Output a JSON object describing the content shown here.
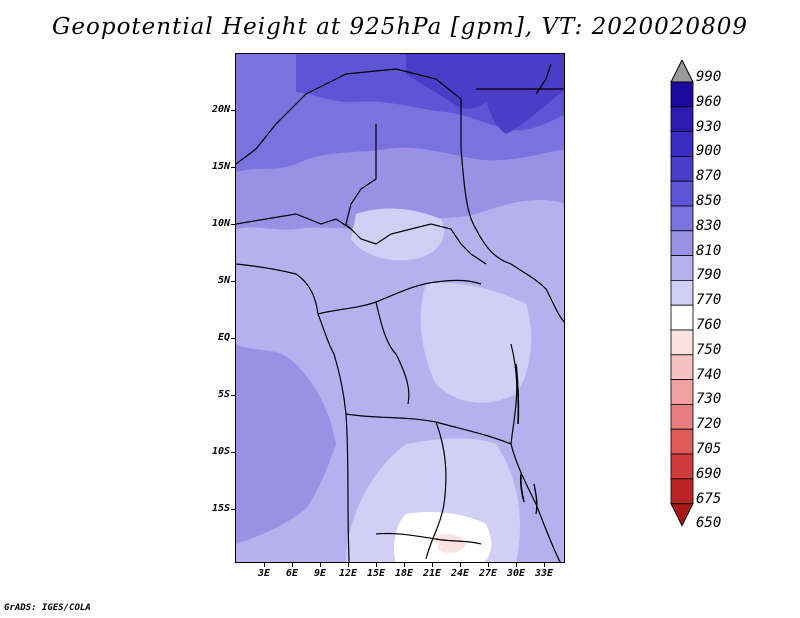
{
  "title": "Geopotential Height at 925hPa [gpm], VT: 2020020809",
  "credit": "GrADS: IGES/COLA",
  "map": {
    "variable": "geopotential height",
    "level": "925hPa",
    "units": "gpm",
    "lon_range": [
      0,
      35
    ],
    "lat_range": [
      -20,
      25
    ],
    "lat_ticks": [
      "20N",
      "15N",
      "10N",
      "5N",
      "EQ",
      "5S",
      "10S",
      "15S"
    ],
    "lon_ticks": [
      "3E",
      "6E",
      "9E",
      "12E",
      "15E",
      "18E",
      "21E",
      "24E",
      "27E",
      "30E",
      "33E"
    ]
  },
  "colorbar": {
    "levels": [
      "990",
      "960",
      "930",
      "900",
      "870",
      "850",
      "830",
      "810",
      "790",
      "770",
      "760",
      "750",
      "740",
      "730",
      "720",
      "705",
      "690",
      "675",
      "650"
    ],
    "colors": [
      "#9a9a9a",
      "#1c0a9c",
      "#2d1cb2",
      "#3a2cbe",
      "#4a3ec9",
      "#5e54d6",
      "#7a72de",
      "#9891e6",
      "#b5b0ee",
      "#d2cff6",
      "#ffffff",
      "#fde2e2",
      "#f9c2c2",
      "#f2a0a0",
      "#e87f7f",
      "#dd5c5c",
      "#cf3c3c",
      "#bc2424",
      "#a81515"
    ]
  }
}
